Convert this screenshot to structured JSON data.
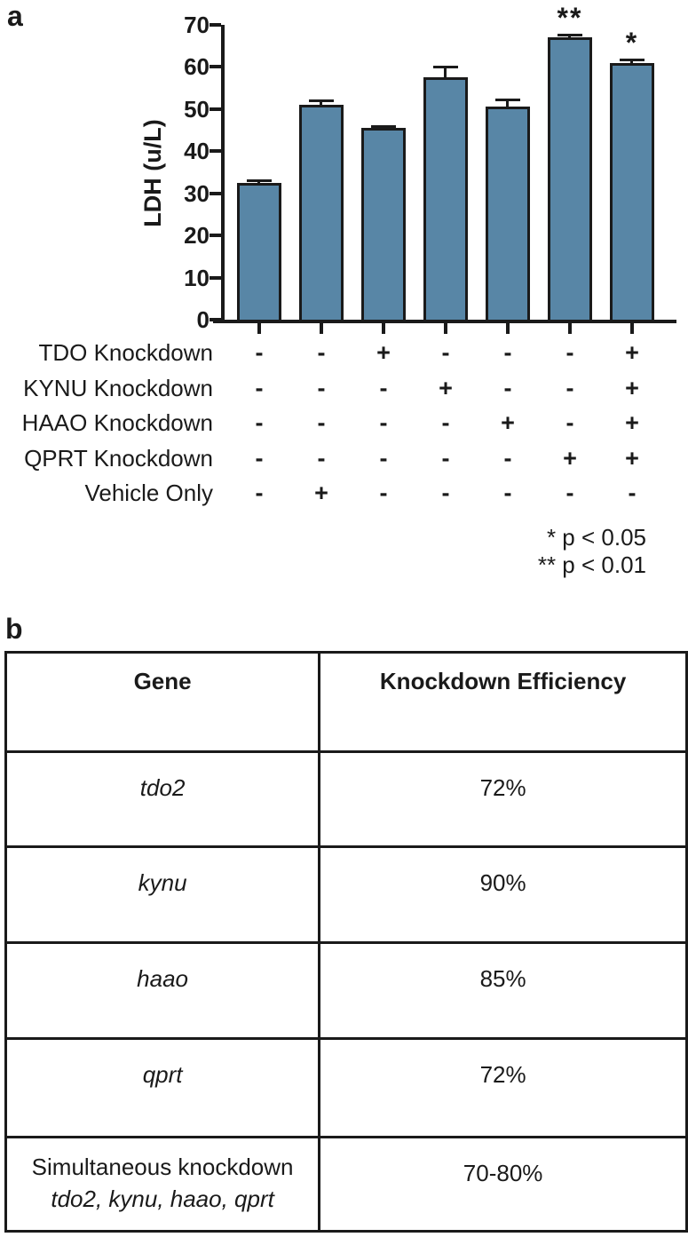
{
  "panel_labels": {
    "a": "a",
    "b": "b"
  },
  "chart_data": [
    {
      "type": "bar",
      "panel": "a",
      "title": "",
      "xlabel": "",
      "ylabel": "LDH (u/L)",
      "ylim": [
        0,
        70
      ],
      "yticks": [
        0,
        10,
        20,
        30,
        40,
        50,
        60,
        70
      ],
      "grid": false,
      "legend": false,
      "bar_color": "#5886a6",
      "bar_edge_color": "#1a1a1a",
      "bars": [
        {
          "value": 32.5,
          "error": 0.5,
          "sig": ""
        },
        {
          "value": 51,
          "error": 1.0,
          "sig": ""
        },
        {
          "value": 45.5,
          "error": 0.5,
          "sig": ""
        },
        {
          "value": 57.5,
          "error": 2.5,
          "sig": ""
        },
        {
          "value": 50.5,
          "error": 1.7,
          "sig": ""
        },
        {
          "value": 67,
          "error": 0.7,
          "sig": "**"
        },
        {
          "value": 61,
          "error": 0.7,
          "sig": "*"
        }
      ],
      "condition_rows": [
        {
          "label": "TDO Knockdown",
          "values": [
            "-",
            "-",
            "+",
            "-",
            "-",
            "-",
            "+"
          ]
        },
        {
          "label": "KYNU Knockdown",
          "values": [
            "-",
            "-",
            "-",
            "+",
            "-",
            "-",
            "+"
          ]
        },
        {
          "label": "HAAO Knockdown",
          "values": [
            "-",
            "-",
            "-",
            "-",
            "+",
            "-",
            "+"
          ]
        },
        {
          "label": "QPRT Knockdown",
          "values": [
            "-",
            "-",
            "-",
            "-",
            "-",
            "+",
            "+"
          ]
        },
        {
          "label": "Vehicle Only",
          "values": [
            "-",
            "+",
            "-",
            "-",
            "-",
            "-",
            "-"
          ]
        }
      ],
      "significance_notes": [
        "* p < 0.05",
        "** p < 0.01"
      ]
    },
    {
      "type": "table",
      "panel": "b",
      "headers": [
        "Gene",
        "Knockdown Efficiency"
      ],
      "rows": [
        {
          "gene_lines": [
            {
              "text": "tdo2",
              "italic": true
            }
          ],
          "efficiency": "72%"
        },
        {
          "gene_lines": [
            {
              "text": "kynu",
              "italic": true
            }
          ],
          "efficiency": "90%"
        },
        {
          "gene_lines": [
            {
              "text": "haao",
              "italic": true
            }
          ],
          "efficiency": "85%"
        },
        {
          "gene_lines": [
            {
              "text": "qprt",
              "italic": true
            }
          ],
          "efficiency": "72%"
        },
        {
          "gene_lines": [
            {
              "text": "Simultaneous knockdown",
              "italic": false
            },
            {
              "text": "tdo2, kynu, haao, qprt",
              "italic": true
            }
          ],
          "efficiency": "70-80%"
        }
      ]
    }
  ]
}
